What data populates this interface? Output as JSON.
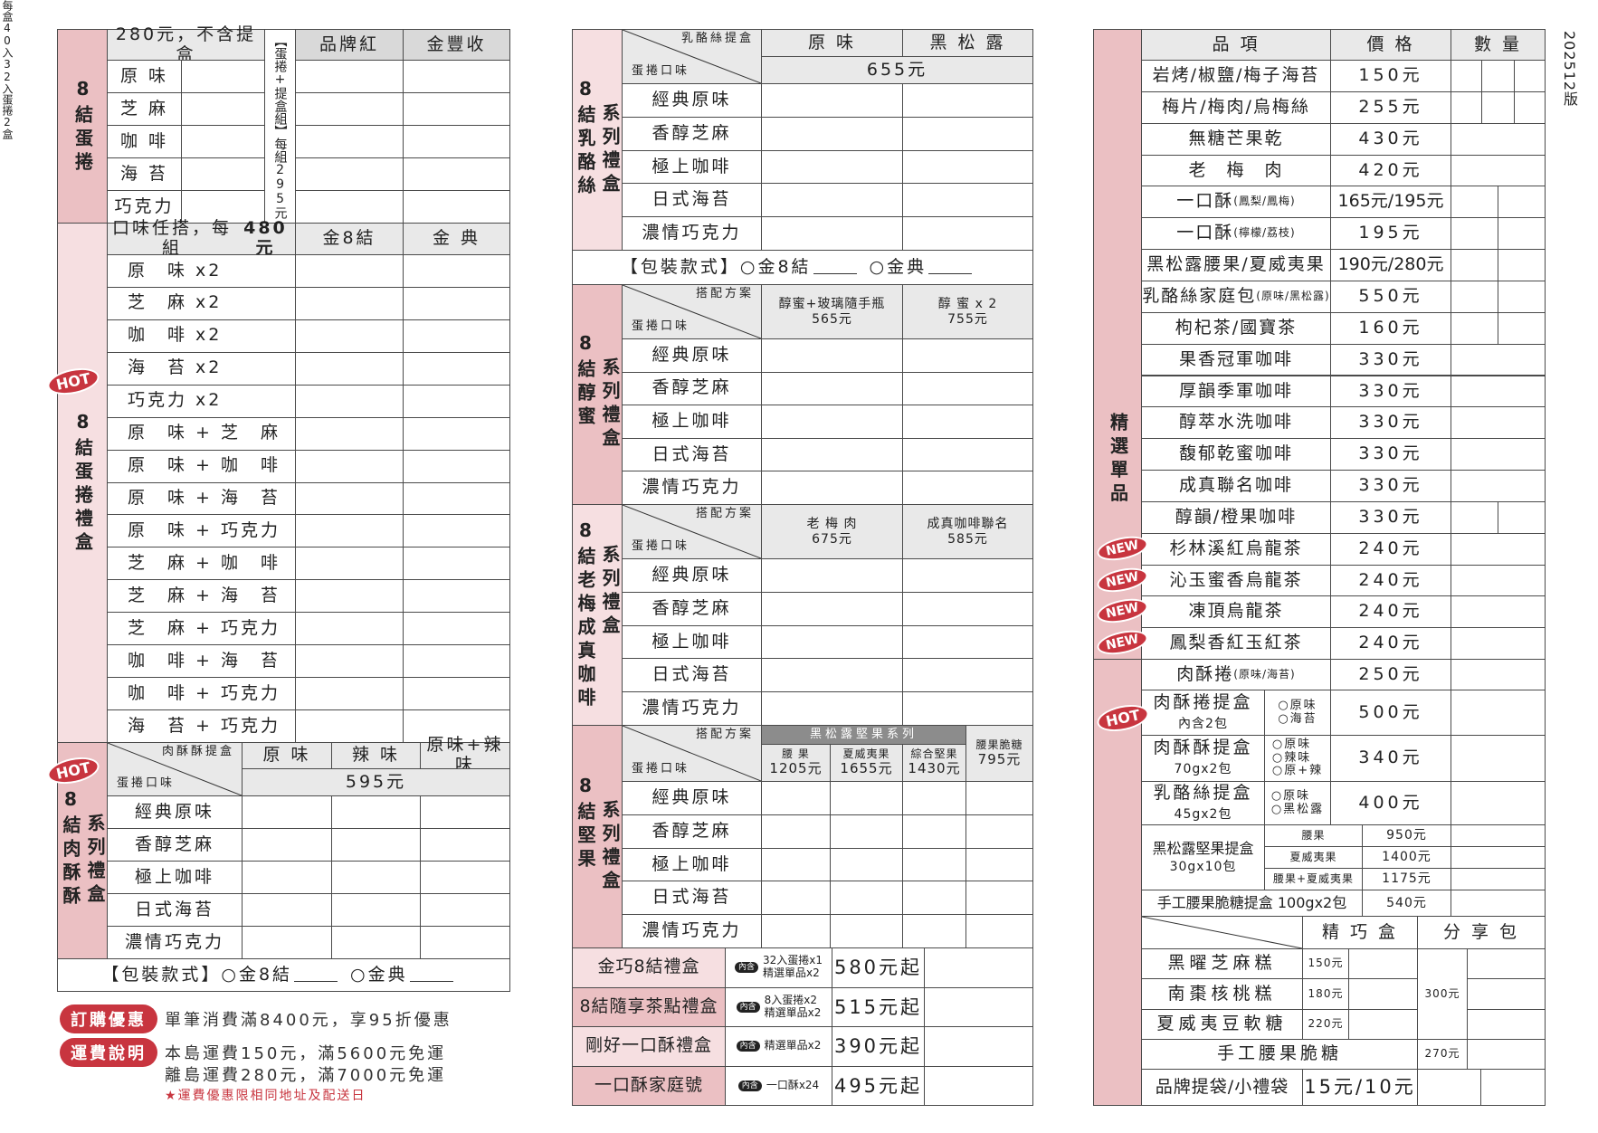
{
  "version": "202512版",
  "left": {
    "s1": {
      "title": "8結蛋捲",
      "sub": "每盒40入",
      "price_note": "280元，不含提盒",
      "set_label": "【蛋捲+提盒組】",
      "set_price": "每組295元",
      "cols": [
        "品牌紅",
        "金豐收"
      ],
      "flavors": [
        "原 味",
        "芝 麻",
        "咖 啡",
        "海 苔",
        "巧克力"
      ]
    },
    "s2": {
      "badge": "HOT",
      "title": "8結蛋捲禮盒",
      "sub": "32入蛋捲2盒",
      "header_a": "口味任搭，每組",
      "header_b": "480元",
      "cols": [
        "金8結",
        "金 典"
      ],
      "combos": [
        "原　味 x2",
        "芝　麻 x2",
        "咖　啡 x2",
        "海　苔 x2",
        "巧克力 x2",
        "原　味 + 芝　麻",
        "原　味 + 咖　啡",
        "原　味 + 海　苔",
        "原　味 + 巧克力",
        "芝　麻 + 咖　啡",
        "芝　麻 + 海　苔",
        "芝　麻 + 巧克力",
        "咖　啡 + 海　苔",
        "咖　啡 + 巧克力",
        "海　苔 + 巧克力"
      ]
    },
    "s3": {
      "badge": "HOT",
      "title": "8結肉酥酥",
      "series": "系列禮盒",
      "corner_top": "肉酥酥提盒",
      "corner_bottom": "蛋捲口味",
      "cols": [
        "原 味",
        "辣 味",
        "原味+辣味"
      ],
      "price": "595元",
      "flavors": [
        "經典原味",
        "香醇芝麻",
        "極上咖啡",
        "日式海苔",
        "濃情巧克力"
      ],
      "packaging": {
        "label": "【包裝款式】",
        "opt1": "金8結",
        "opt2": "金典"
      }
    }
  },
  "promo": {
    "order_label": "訂購優惠",
    "order_text": "單筆消費滿8400元，享95折優惠",
    "ship_label": "運費說明",
    "ship_line1": "本島運費150元，滿5600元免運",
    "ship_line2": "離島運費280元，滿7000元免運",
    "ship_note": "★運費優惠限相同地址及配送日"
  },
  "mid": {
    "corner_bottom": "蛋捲口味",
    "flavors": [
      "經典原味",
      "香醇芝麻",
      "極上咖啡",
      "日式海苔",
      "濃情巧克力"
    ],
    "cheese": {
      "title": "8結乳酪絲",
      "series": "系列禮盒",
      "corner_top": "乳酪絲提盒",
      "cols": [
        "原 味",
        "黑 松 露"
      ],
      "price": "655元",
      "packaging": {
        "label": "【包裝款式】",
        "opt1": "金8結",
        "opt2": "金典"
      }
    },
    "honey": {
      "title": "8結醇蜜",
      "series": "系列禮盒",
      "corner_top": "搭配方案",
      "cols": [
        {
          "name": "醇蜜+玻璃隨手瓶",
          "price": "565元"
        },
        {
          "name": "醇 蜜 x 2",
          "price": "755元"
        }
      ]
    },
    "plum": {
      "title": "8結老梅成真咖啡",
      "series": "系列禮盒",
      "corner_top": "搭配方案",
      "cols": [
        {
          "name": "老 梅 肉",
          "price": "675元"
        },
        {
          "name": "成真咖啡聯名",
          "price": "585元"
        }
      ]
    },
    "nut": {
      "title": "8結堅果",
      "series": "系列禮盒",
      "corner_top": "搭配方案",
      "group": "黑松露堅果系列",
      "cols": [
        {
          "name": "腰 果",
          "price": "1205元"
        },
        {
          "name": "夏威夷果",
          "price": "1655元"
        },
        {
          "name": "綜合堅果",
          "price": "1430元"
        },
        {
          "name": "腰果脆糖",
          "price": "795元"
        }
      ]
    },
    "gifts": [
      {
        "name": "金巧8結禮盒",
        "badge": "內含",
        "contents": [
          "32入蛋捲x1",
          "精選單品x2"
        ],
        "price": "580元起"
      },
      {
        "name": "8結隨享茶點禮盒",
        "badge": "內含",
        "contents": [
          "8入蛋捲x2",
          "精選單品x2"
        ],
        "price": "515元起"
      },
      {
        "name": "剛好一口酥禮盒",
        "badge": "內含",
        "contents": [
          "精選單品x2"
        ],
        "price": "390元起"
      },
      {
        "name": "一口酥家庭號",
        "badge": "內含",
        "contents": [
          "一口酥x24"
        ],
        "price": "495元起"
      }
    ]
  },
  "right": {
    "section": "精選單品",
    "header": [
      "品 項",
      "價 格",
      "數 量"
    ],
    "items": [
      {
        "name": "岩烤/椒鹽/梅子海苔",
        "price": "150元"
      },
      {
        "name": "梅片/梅肉/烏梅絲",
        "price": "255元"
      },
      {
        "name": "無糖芒果乾",
        "price": "430元"
      },
      {
        "name": "老　梅　肉",
        "price": "420元"
      },
      {
        "name": "一口酥",
        "small": "(鳳梨/鳳梅)",
        "price": "165元/195元"
      },
      {
        "name": "一口酥",
        "small": "(檸檬/荔枝)",
        "price": "195元"
      },
      {
        "name": "黑松露腰果/夏威夷果",
        "price": "190元/280元"
      },
      {
        "name": "乳酪絲家庭包",
        "small": "(原味/黑松露)",
        "price": "550元"
      },
      {
        "name": "枸杞茶/國寶茶",
        "price": "160元"
      },
      {
        "name": "果香冠軍咖啡",
        "price": "330元"
      },
      {
        "name": "厚韻季軍咖啡",
        "price": "330元"
      },
      {
        "name": "醇萃水洗咖啡",
        "price": "330元"
      },
      {
        "name": "馥郁乾蜜咖啡",
        "price": "330元"
      },
      {
        "name": "成真聯名咖啡",
        "price": "330元"
      },
      {
        "name": "醇韻/橙果咖啡",
        "price": "330元"
      },
      {
        "name": "杉林溪紅烏龍茶",
        "price": "240元",
        "badge": "NEW"
      },
      {
        "name": "沁玉蜜香烏龍茶",
        "price": "240元",
        "badge": "NEW"
      },
      {
        "name": "凍頂烏龍茶",
        "price": "240元",
        "badge": "NEW"
      },
      {
        "name": "鳳梨香紅玉紅茶",
        "price": "240元",
        "badge": "NEW"
      },
      {
        "name": "肉酥捲",
        "small": "(原味/海苔)",
        "price": "250元"
      }
    ],
    "boxes": [
      {
        "name": "肉酥捲提盒",
        "sub": "內含2包",
        "options": [
          "原味",
          "海苔"
        ],
        "price": "500元",
        "badge": "HOT"
      },
      {
        "name": "肉酥酥提盒",
        "sub": "70gx2包",
        "options": [
          "原味",
          "辣味",
          "原+辣"
        ],
        "price": "340元"
      },
      {
        "name": "乳酪絲提盒",
        "sub": "45gx2包",
        "options": [
          "原味",
          "黑松露"
        ],
        "price": "400元"
      }
    ],
    "nut_box": {
      "name": "黑松露堅果提盒",
      "sub": "30gx10包",
      "variants": [
        {
          "name": "腰果",
          "price": "950元"
        },
        {
          "name": "夏威夷果",
          "price": "1400元"
        },
        {
          "name": "腰果+夏威夷果",
          "price": "1175元"
        }
      ]
    },
    "brittle_box": {
      "name": "手工腰果脆糖提盒 100gx2包",
      "price": "540元"
    },
    "cakes": {
      "cols": [
        "精 巧 盒",
        "分 享 包"
      ],
      "items": [
        {
          "name": "黑曜芝麻糕",
          "price": "150元"
        },
        {
          "name": "南棗核桃糕",
          "price": "180元"
        },
        {
          "name": "夏威夷豆軟糖",
          "price": "220元"
        }
      ],
      "share_price": "300元",
      "brittle": {
        "name": "手工腰果脆糖",
        "price": "270元"
      },
      "bag": {
        "name": "品牌提袋/小禮袋",
        "price": "15元/10元"
      }
    }
  }
}
